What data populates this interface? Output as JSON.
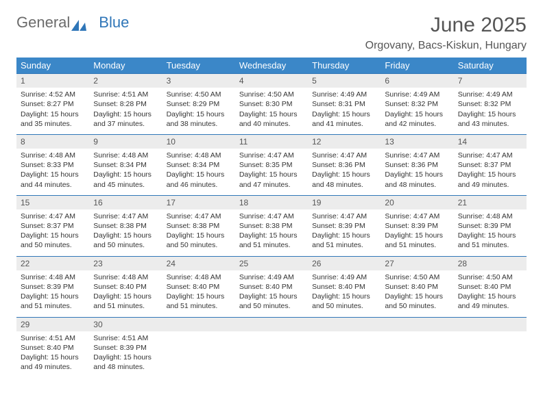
{
  "logo": {
    "text1": "General",
    "text2": "Blue"
  },
  "title": "June 2025",
  "location": "Orgovany, Bacs-Kiskun, Hungary",
  "colors": {
    "header_bg": "#3b87c8",
    "header_text": "#ffffff",
    "daynum_bg": "#ececec",
    "daynum_text": "#555555",
    "border": "#2f76b8",
    "logo_gray": "#6b6b6b",
    "logo_blue": "#2f76b8",
    "title_color": "#555555"
  },
  "weekdays": [
    "Sunday",
    "Monday",
    "Tuesday",
    "Wednesday",
    "Thursday",
    "Friday",
    "Saturday"
  ],
  "weeks": [
    [
      {
        "day": "1",
        "sunrise": "Sunrise: 4:52 AM",
        "sunset": "Sunset: 8:27 PM",
        "daylight": "Daylight: 15 hours and 35 minutes."
      },
      {
        "day": "2",
        "sunrise": "Sunrise: 4:51 AM",
        "sunset": "Sunset: 8:28 PM",
        "daylight": "Daylight: 15 hours and 37 minutes."
      },
      {
        "day": "3",
        "sunrise": "Sunrise: 4:50 AM",
        "sunset": "Sunset: 8:29 PM",
        "daylight": "Daylight: 15 hours and 38 minutes."
      },
      {
        "day": "4",
        "sunrise": "Sunrise: 4:50 AM",
        "sunset": "Sunset: 8:30 PM",
        "daylight": "Daylight: 15 hours and 40 minutes."
      },
      {
        "day": "5",
        "sunrise": "Sunrise: 4:49 AM",
        "sunset": "Sunset: 8:31 PM",
        "daylight": "Daylight: 15 hours and 41 minutes."
      },
      {
        "day": "6",
        "sunrise": "Sunrise: 4:49 AM",
        "sunset": "Sunset: 8:32 PM",
        "daylight": "Daylight: 15 hours and 42 minutes."
      },
      {
        "day": "7",
        "sunrise": "Sunrise: 4:49 AM",
        "sunset": "Sunset: 8:32 PM",
        "daylight": "Daylight: 15 hours and 43 minutes."
      }
    ],
    [
      {
        "day": "8",
        "sunrise": "Sunrise: 4:48 AM",
        "sunset": "Sunset: 8:33 PM",
        "daylight": "Daylight: 15 hours and 44 minutes."
      },
      {
        "day": "9",
        "sunrise": "Sunrise: 4:48 AM",
        "sunset": "Sunset: 8:34 PM",
        "daylight": "Daylight: 15 hours and 45 minutes."
      },
      {
        "day": "10",
        "sunrise": "Sunrise: 4:48 AM",
        "sunset": "Sunset: 8:34 PM",
        "daylight": "Daylight: 15 hours and 46 minutes."
      },
      {
        "day": "11",
        "sunrise": "Sunrise: 4:47 AM",
        "sunset": "Sunset: 8:35 PM",
        "daylight": "Daylight: 15 hours and 47 minutes."
      },
      {
        "day": "12",
        "sunrise": "Sunrise: 4:47 AM",
        "sunset": "Sunset: 8:36 PM",
        "daylight": "Daylight: 15 hours and 48 minutes."
      },
      {
        "day": "13",
        "sunrise": "Sunrise: 4:47 AM",
        "sunset": "Sunset: 8:36 PM",
        "daylight": "Daylight: 15 hours and 48 minutes."
      },
      {
        "day": "14",
        "sunrise": "Sunrise: 4:47 AM",
        "sunset": "Sunset: 8:37 PM",
        "daylight": "Daylight: 15 hours and 49 minutes."
      }
    ],
    [
      {
        "day": "15",
        "sunrise": "Sunrise: 4:47 AM",
        "sunset": "Sunset: 8:37 PM",
        "daylight": "Daylight: 15 hours and 50 minutes."
      },
      {
        "day": "16",
        "sunrise": "Sunrise: 4:47 AM",
        "sunset": "Sunset: 8:38 PM",
        "daylight": "Daylight: 15 hours and 50 minutes."
      },
      {
        "day": "17",
        "sunrise": "Sunrise: 4:47 AM",
        "sunset": "Sunset: 8:38 PM",
        "daylight": "Daylight: 15 hours and 50 minutes."
      },
      {
        "day": "18",
        "sunrise": "Sunrise: 4:47 AM",
        "sunset": "Sunset: 8:38 PM",
        "daylight": "Daylight: 15 hours and 51 minutes."
      },
      {
        "day": "19",
        "sunrise": "Sunrise: 4:47 AM",
        "sunset": "Sunset: 8:39 PM",
        "daylight": "Daylight: 15 hours and 51 minutes."
      },
      {
        "day": "20",
        "sunrise": "Sunrise: 4:47 AM",
        "sunset": "Sunset: 8:39 PM",
        "daylight": "Daylight: 15 hours and 51 minutes."
      },
      {
        "day": "21",
        "sunrise": "Sunrise: 4:48 AM",
        "sunset": "Sunset: 8:39 PM",
        "daylight": "Daylight: 15 hours and 51 minutes."
      }
    ],
    [
      {
        "day": "22",
        "sunrise": "Sunrise: 4:48 AM",
        "sunset": "Sunset: 8:39 PM",
        "daylight": "Daylight: 15 hours and 51 minutes."
      },
      {
        "day": "23",
        "sunrise": "Sunrise: 4:48 AM",
        "sunset": "Sunset: 8:40 PM",
        "daylight": "Daylight: 15 hours and 51 minutes."
      },
      {
        "day": "24",
        "sunrise": "Sunrise: 4:48 AM",
        "sunset": "Sunset: 8:40 PM",
        "daylight": "Daylight: 15 hours and 51 minutes."
      },
      {
        "day": "25",
        "sunrise": "Sunrise: 4:49 AM",
        "sunset": "Sunset: 8:40 PM",
        "daylight": "Daylight: 15 hours and 50 minutes."
      },
      {
        "day": "26",
        "sunrise": "Sunrise: 4:49 AM",
        "sunset": "Sunset: 8:40 PM",
        "daylight": "Daylight: 15 hours and 50 minutes."
      },
      {
        "day": "27",
        "sunrise": "Sunrise: 4:50 AM",
        "sunset": "Sunset: 8:40 PM",
        "daylight": "Daylight: 15 hours and 50 minutes."
      },
      {
        "day": "28",
        "sunrise": "Sunrise: 4:50 AM",
        "sunset": "Sunset: 8:40 PM",
        "daylight": "Daylight: 15 hours and 49 minutes."
      }
    ],
    [
      {
        "day": "29",
        "sunrise": "Sunrise: 4:51 AM",
        "sunset": "Sunset: 8:40 PM",
        "daylight": "Daylight: 15 hours and 49 minutes."
      },
      {
        "day": "30",
        "sunrise": "Sunrise: 4:51 AM",
        "sunset": "Sunset: 8:39 PM",
        "daylight": "Daylight: 15 hours and 48 minutes."
      },
      {
        "day": "",
        "sunrise": "",
        "sunset": "",
        "daylight": ""
      },
      {
        "day": "",
        "sunrise": "",
        "sunset": "",
        "daylight": ""
      },
      {
        "day": "",
        "sunrise": "",
        "sunset": "",
        "daylight": ""
      },
      {
        "day": "",
        "sunrise": "",
        "sunset": "",
        "daylight": ""
      },
      {
        "day": "",
        "sunrise": "",
        "sunset": "",
        "daylight": ""
      }
    ]
  ]
}
